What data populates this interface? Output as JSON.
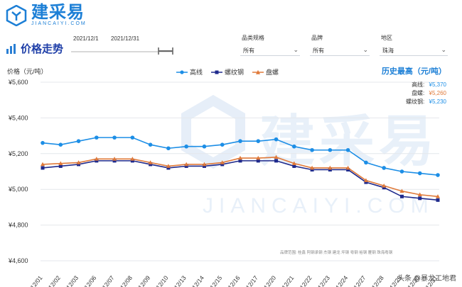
{
  "brand": {
    "name_cn": "建采易",
    "name_en": "JIANCAIYI.COM",
    "trademark": "®"
  },
  "page": {
    "title": "价格走势"
  },
  "date_range": {
    "start": "2021/12/1",
    "end": "2021/12/31"
  },
  "filters": [
    {
      "label": "品类规格",
      "value": "所有"
    },
    {
      "label": "品牌",
      "value": "所有"
    },
    {
      "label": "地区",
      "value": "珠海"
    }
  ],
  "history_high": {
    "title": "历史最高（元/吨）",
    "rows": [
      {
        "name": "高线:",
        "value": "¥5,370",
        "color": "#1c8ee6"
      },
      {
        "name": "盘螺:",
        "value": "¥5,260",
        "color": "#e07a3a"
      },
      {
        "name": "螺纹钢:",
        "value": "¥5,230",
        "color": "#1c8ee6"
      }
    ]
  },
  "brands_text": "品牌范围: 桂鑫 阿钢承钢 杰钢 建龙 坪钢 粤钢 裕钢 雁钢 珠海粤钢",
  "credit": "头条 @暴龙工地君",
  "watermark": {
    "cn": "建采易",
    "en": "JIANCAIYI.COM"
  },
  "chart_data": {
    "type": "line",
    "title": "",
    "ylabel": "价格（元/吨）",
    "xlabel": "",
    "ylim": [
      4600,
      5600
    ],
    "yticks": [
      4600,
      4800,
      5000,
      5200,
      5400,
      5600
    ],
    "ytick_labels": [
      "¥4,600",
      "¥4,800",
      "¥5,000",
      "¥5,200",
      "¥5,400",
      "¥5,600"
    ],
    "grid": true,
    "legend_position": "top",
    "categories": [
      "12/01",
      "12/02",
      "12/03",
      "12/06",
      "12/07",
      "12/08",
      "12/09",
      "12/10",
      "12/13",
      "12/14",
      "12/15",
      "12/16",
      "12/17",
      "12/20",
      "12/21",
      "12/22",
      "12/23",
      "12/24",
      "12/27",
      "12/28",
      "12/29",
      "12/30",
      "12/31"
    ],
    "series": [
      {
        "name": "高线",
        "color": "#1c8ee6",
        "marker": "circle",
        "values": [
          5260,
          5250,
          5270,
          5290,
          5290,
          5290,
          5250,
          5230,
          5240,
          5240,
          5250,
          5270,
          5270,
          5280,
          5240,
          5220,
          5220,
          5220,
          5150,
          5120,
          5100,
          5090,
          5080
        ]
      },
      {
        "name": "螺纹钢",
        "color": "#1f2a8c",
        "marker": "square",
        "values": [
          5120,
          5130,
          5140,
          5160,
          5160,
          5160,
          5140,
          5120,
          5130,
          5130,
          5140,
          5160,
          5160,
          5160,
          5130,
          5110,
          5110,
          5110,
          5040,
          5010,
          4960,
          4950,
          4940
        ]
      },
      {
        "name": "盘螺",
        "color": "#e07a3a",
        "marker": "triangle",
        "values": [
          5140,
          5145,
          5150,
          5170,
          5170,
          5170,
          5150,
          5130,
          5140,
          5140,
          5150,
          5175,
          5175,
          5180,
          5145,
          5120,
          5120,
          5120,
          5050,
          5020,
          4990,
          4970,
          4960
        ]
      }
    ]
  }
}
